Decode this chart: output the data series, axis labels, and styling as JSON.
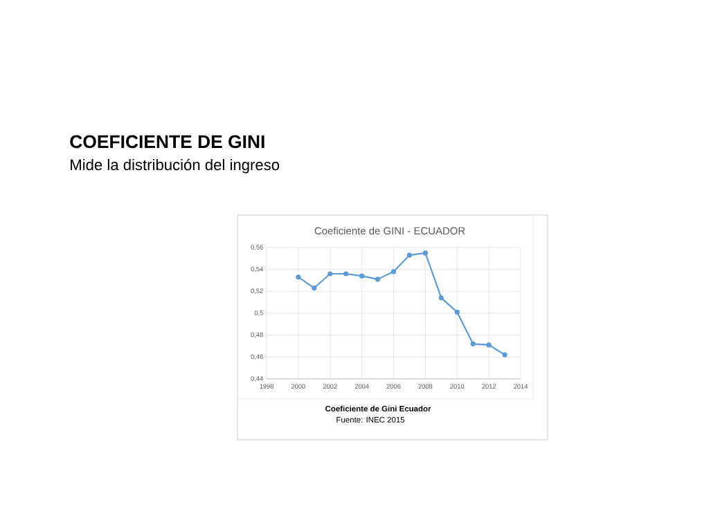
{
  "chart_data": {
    "type": "line",
    "title": "COEFICIENTE DE GINI",
    "subtitle": "Mide la distribución del ingreso",
    "annotations": [
      "Coeficiente de GINI - ECUADOR",
      "Coeficiente de Gini Ecuador",
      "Fuente: INEC 2015"
    ],
    "x": [
      2000,
      2001,
      2002,
      2003,
      2004,
      2005,
      2006,
      2007,
      2008,
      2009,
      2010,
      2011,
      2012,
      2013
    ],
    "series": [
      {
        "color": "#5b9bd5",
        "values": [
          0.533,
          0.523,
          0.536,
          0.536,
          0.534,
          0.531,
          0.538,
          0.553,
          0.555,
          0.514,
          0.501,
          0.472,
          0.471,
          0.462
        ]
      }
    ],
    "xlim": [
      1998,
      2014
    ],
    "xticks": [
      1998,
      2000,
      2002,
      2004,
      2006,
      2008,
      2010,
      2012,
      2014
    ],
    "ylim": [
      0.44,
      0.56
    ],
    "yticks": [
      {
        "value": 0.44,
        "label": "0,44"
      },
      {
        "value": 0.46,
        "label": "0,46"
      },
      {
        "value": 0.48,
        "label": "0,48"
      },
      {
        "value": 0.5,
        "label": "0,5"
      },
      {
        "value": 0.52,
        "label": "0,52"
      },
      {
        "value": 0.54,
        "label": "0,54"
      },
      {
        "value": 0.56,
        "label": "0,56"
      }
    ],
    "grid": true,
    "marker": "circle",
    "line_style": "solid"
  }
}
